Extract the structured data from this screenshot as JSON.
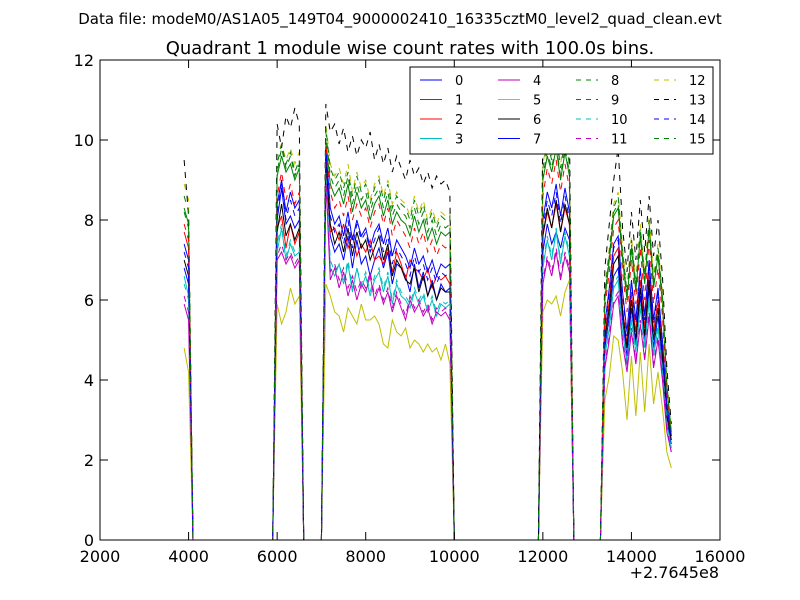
{
  "figure": {
    "suptitle": "Data file: modeM0/AS1A05_149T04_9000002410_16335cztM0_level2_quad_clean.evt",
    "axis_offset_label": "+2.7645e8"
  },
  "chart_data": {
    "type": "line",
    "title": "Quadrant 1 module wise count rates with 100.0s bins.",
    "xlabel": "",
    "ylabel": "",
    "xlim": [
      2000,
      16000
    ],
    "ylim": [
      0,
      12
    ],
    "x_offset": 276450000,
    "x_ticks": [
      2000,
      4000,
      6000,
      8000,
      10000,
      12000,
      14000,
      16000
    ],
    "y_ticks": [
      0,
      2,
      4,
      6,
      8,
      10,
      12
    ],
    "grid": false,
    "legend_position": "top-right",
    "legend_columns": 4,
    "time_bins": [
      3900,
      4000,
      4100,
      5900,
      6000,
      6100,
      6200,
      6300,
      6400,
      6500,
      6600,
      7000,
      7100,
      7200,
      7300,
      7400,
      7500,
      7600,
      7700,
      7800,
      7900,
      8000,
      8100,
      8200,
      8300,
      8400,
      8500,
      8600,
      8700,
      8800,
      8900,
      9000,
      9100,
      9200,
      9300,
      9400,
      9500,
      9600,
      9700,
      9800,
      9900,
      10000,
      11900,
      12000,
      12100,
      12200,
      12300,
      12400,
      12500,
      12600,
      12700,
      13300,
      13400,
      13500,
      13600,
      13700,
      13800,
      13900,
      14000,
      14100,
      14200,
      14300,
      14400,
      14500,
      14600,
      14700,
      14800,
      14900
    ],
    "series": [
      {
        "name": "0",
        "color": "#0000ff",
        "dash": "solid",
        "levels": [
          6.8,
          6.4,
          0,
          0,
          8.0,
          8.8,
          7.9,
          8.1,
          7.8,
          8.0,
          0,
          0,
          9.5,
          7.6,
          7.2,
          7.4,
          7.0,
          7.6,
          6.8,
          7.5,
          6.9,
          7.1,
          6.6,
          7.0,
          7.3,
          6.8,
          7.2,
          6.4,
          6.9,
          6.8,
          6.6,
          6.2,
          6.9,
          6.3,
          6.7,
          6.1,
          6.5,
          6.0,
          6.4,
          6.2,
          6.3,
          0,
          0,
          7.2,
          7.9,
          7.4,
          7.7,
          7.3,
          7.8,
          7.5,
          0,
          0,
          4.8,
          5.6,
          6.6,
          6.8,
          5.5,
          4.6,
          5.8,
          4.9,
          6.1,
          5.0,
          6.3,
          4.8,
          5.6,
          4.4,
          3.0,
          2.4
        ]
      },
      {
        "name": "1",
        "color": "#008000",
        "dash": "solid",
        "levels": [
          8.3,
          7.9,
          0,
          0,
          9.1,
          9.6,
          9.2,
          9.4,
          9.0,
          9.3,
          0,
          0,
          10.0,
          8.9,
          8.6,
          8.8,
          8.4,
          8.9,
          8.2,
          8.7,
          8.3,
          8.5,
          8.0,
          8.4,
          8.6,
          8.1,
          8.5,
          7.9,
          8.2,
          8.0,
          7.9,
          7.6,
          8.1,
          7.7,
          8.0,
          7.5,
          7.8,
          7.4,
          7.7,
          7.6,
          7.7,
          0,
          0,
          9.0,
          9.6,
          9.2,
          9.8,
          9.0,
          9.7,
          9.1,
          0,
          0,
          6.0,
          7.0,
          8.1,
          8.3,
          7.0,
          6.0,
          7.3,
          6.2,
          7.6,
          6.4,
          7.8,
          6.3,
          7.1,
          5.9,
          3.8,
          2.6
        ]
      },
      {
        "name": "2",
        "color": "#ff0000",
        "dash": "solid",
        "levels": [
          7.7,
          7.3,
          0,
          0,
          7.8,
          8.1,
          7.3,
          7.9,
          7.4,
          7.7,
          0,
          0,
          9.6,
          7.7,
          7.8,
          7.5,
          7.9,
          7.3,
          7.6,
          7.1,
          7.4,
          7.2,
          7.5,
          7.0,
          7.1,
          6.9,
          7.3,
          6.7,
          7.2,
          6.9,
          6.5,
          7.0,
          6.8,
          6.7,
          6.5,
          6.8,
          6.3,
          6.6,
          6.5,
          6.6,
          6.4,
          0,
          0,
          7.6,
          8.2,
          7.8,
          8.4,
          7.7,
          8.3,
          7.9,
          0,
          0,
          5.1,
          6.0,
          7.1,
          7.3,
          5.8,
          4.9,
          6.2,
          5.2,
          6.5,
          5.3,
          6.7,
          5.2,
          6.0,
          4.7,
          3.2,
          2.5
        ]
      },
      {
        "name": "3",
        "color": "#00bfbf",
        "dash": "solid",
        "levels": [
          6.6,
          6.1,
          0,
          0,
          7.2,
          7.8,
          7.0,
          7.4,
          7.1,
          7.2,
          0,
          0,
          9.1,
          6.8,
          6.6,
          6.9,
          6.4,
          6.9,
          6.2,
          6.8,
          6.3,
          6.6,
          6.1,
          6.5,
          6.7,
          6.2,
          6.6,
          5.9,
          6.4,
          6.1,
          6.0,
          5.8,
          6.2,
          5.9,
          6.1,
          5.7,
          6.0,
          5.6,
          5.9,
          5.8,
          5.9,
          0,
          0,
          6.8,
          7.5,
          7.0,
          7.7,
          6.9,
          7.6,
          7.1,
          0,
          0,
          4.6,
          5.3,
          6.3,
          6.5,
          5.2,
          4.4,
          5.5,
          4.7,
          5.8,
          4.8,
          6.0,
          4.6,
          5.3,
          4.2,
          2.9,
          2.3
        ]
      },
      {
        "name": "4",
        "color": "#bf00bf",
        "dash": "solid",
        "levels": [
          5.9,
          5.5,
          0,
          0,
          7.0,
          7.2,
          6.9,
          7.1,
          6.8,
          7.0,
          0,
          0,
          9.0,
          6.5,
          6.8,
          6.3,
          6.7,
          6.1,
          6.5,
          6.0,
          6.4,
          6.2,
          6.6,
          6.0,
          6.3,
          5.9,
          6.2,
          5.7,
          6.1,
          5.8,
          5.5,
          6.0,
          5.7,
          5.9,
          5.6,
          5.8,
          5.4,
          5.7,
          5.6,
          5.7,
          5.5,
          0,
          0,
          6.4,
          7.0,
          6.6,
          7.2,
          6.5,
          7.1,
          6.7,
          0,
          0,
          4.3,
          5.0,
          5.9,
          6.1,
          4.9,
          4.2,
          5.2,
          4.4,
          5.4,
          4.5,
          5.6,
          4.3,
          5.0,
          4.0,
          2.7,
          2.2
        ]
      },
      {
        "name": "5",
        "color": "#bfbf00",
        "dash": "solid",
        "levels": [
          4.8,
          4.2,
          0,
          0,
          5.9,
          5.4,
          5.7,
          6.3,
          5.9,
          6.1,
          0,
          0,
          6.4,
          6.1,
          5.7,
          5.6,
          5.2,
          5.8,
          5.6,
          5.4,
          5.9,
          5.5,
          5.5,
          5.6,
          5.4,
          4.9,
          4.8,
          5.5,
          5.2,
          5.1,
          5.3,
          4.8,
          5.0,
          4.9,
          4.7,
          4.9,
          4.7,
          4.8,
          4.5,
          4.9,
          4.4,
          0,
          0,
          5.7,
          6.0,
          5.9,
          6.1,
          5.6,
          6.2,
          6.5,
          0,
          0,
          3.5,
          4.1,
          5.1,
          5.0,
          4.2,
          3.0,
          4.6,
          3.1,
          4.7,
          3.2,
          4.9,
          3.4,
          4.2,
          3.3,
          2.2,
          1.8
        ]
      },
      {
        "name": "6",
        "color": "#000000",
        "dash": "solid",
        "levels": [
          7.0,
          6.6,
          0,
          0,
          7.7,
          8.4,
          7.6,
          7.9,
          7.5,
          7.8,
          0,
          0,
          9.4,
          7.9,
          7.4,
          7.7,
          7.2,
          7.8,
          7.1,
          7.7,
          7.3,
          7.5,
          7.0,
          7.3,
          7.6,
          7.0,
          7.4,
          6.6,
          7.0,
          6.8,
          6.5,
          6.4,
          6.8,
          6.2,
          6.6,
          6.1,
          6.4,
          6.0,
          6.3,
          6.2,
          6.2,
          0,
          0,
          7.6,
          8.3,
          7.8,
          8.5,
          7.7,
          8.4,
          7.9,
          0,
          0,
          5.0,
          5.8,
          6.9,
          7.1,
          5.7,
          4.8,
          6.0,
          5.0,
          6.3,
          5.1,
          6.5,
          5.0,
          5.8,
          4.6,
          3.1,
          2.5
        ]
      },
      {
        "name": "7",
        "color": "#0000ff",
        "dash": "solid",
        "levels": [
          7.4,
          7.0,
          0,
          0,
          8.4,
          9.0,
          8.2,
          8.7,
          8.3,
          8.5,
          0,
          0,
          9.8,
          8.3,
          7.9,
          8.1,
          7.6,
          8.2,
          7.5,
          8.0,
          7.6,
          7.8,
          7.3,
          7.7,
          7.9,
          7.4,
          7.8,
          7.1,
          7.5,
          7.3,
          7.1,
          6.8,
          7.3,
          6.9,
          7.1,
          6.7,
          7.0,
          6.6,
          6.9,
          6.8,
          6.9,
          0,
          0,
          8.0,
          8.7,
          8.3,
          8.9,
          8.1,
          8.8,
          8.2,
          0,
          0,
          5.4,
          6.3,
          7.4,
          7.6,
          6.2,
          5.2,
          6.5,
          5.5,
          6.8,
          5.6,
          7.0,
          5.5,
          6.3,
          5.0,
          3.4,
          2.6
        ]
      },
      {
        "name": "8",
        "color": "#008000",
        "dash": "dash",
        "levels": [
          8.2,
          7.8,
          0,
          0,
          9.2,
          9.8,
          9.3,
          9.6,
          9.1,
          9.4,
          0,
          0,
          10.2,
          9.1,
          8.8,
          9.0,
          8.6,
          9.1,
          8.4,
          8.9,
          8.5,
          8.7,
          8.2,
          8.6,
          8.8,
          8.3,
          8.7,
          8.1,
          8.4,
          8.2,
          8.1,
          7.8,
          8.3,
          7.9,
          8.2,
          7.7,
          8.0,
          7.6,
          7.9,
          7.8,
          7.9,
          0,
          0,
          9.1,
          9.7,
          9.3,
          9.9,
          9.1,
          9.8,
          9.2,
          0,
          0,
          6.1,
          7.1,
          8.2,
          8.4,
          7.1,
          6.1,
          7.4,
          6.3,
          7.7,
          6.5,
          7.9,
          6.4,
          7.2,
          6.0,
          3.9,
          2.7
        ]
      },
      {
        "name": "9",
        "color": "#ff0000",
        "dash": "dash",
        "levels": [
          7.9,
          7.5,
          0,
          0,
          8.6,
          9.2,
          8.5,
          8.9,
          8.4,
          8.7,
          0,
          0,
          9.9,
          8.7,
          8.3,
          8.5,
          8.1,
          8.6,
          8.0,
          8.4,
          8.1,
          8.3,
          7.8,
          8.2,
          8.4,
          7.9,
          8.3,
          7.6,
          8.0,
          7.8,
          7.6,
          7.3,
          7.8,
          7.4,
          7.7,
          7.2,
          7.5,
          7.1,
          7.4,
          7.3,
          7.4,
          0,
          0,
          8.6,
          9.3,
          8.9,
          9.5,
          8.7,
          9.4,
          8.8,
          0,
          0,
          5.8,
          6.7,
          7.8,
          8.0,
          6.7,
          5.7,
          7.0,
          5.9,
          7.3,
          6.0,
          7.5,
          5.9,
          6.8,
          5.6,
          3.6,
          2.6
        ]
      },
      {
        "name": "10",
        "color": "#00bfbf",
        "dash": "dash",
        "levels": [
          6.4,
          6.0,
          0,
          0,
          7.4,
          7.9,
          7.1,
          7.5,
          7.2,
          7.3,
          0,
          0,
          9.2,
          7.0,
          6.7,
          6.9,
          6.5,
          7.0,
          6.3,
          6.8,
          6.4,
          6.7,
          6.2,
          6.6,
          6.8,
          6.3,
          6.7,
          6.0,
          6.5,
          6.2,
          6.1,
          5.9,
          6.3,
          6.0,
          6.2,
          5.8,
          6.1,
          5.7,
          6.0,
          5.9,
          6.0,
          0,
          0,
          6.9,
          7.6,
          7.1,
          7.8,
          7.0,
          7.7,
          7.2,
          0,
          0,
          4.7,
          5.4,
          6.4,
          6.6,
          5.3,
          4.5,
          5.6,
          4.8,
          5.9,
          4.9,
          6.1,
          4.7,
          5.4,
          4.3,
          3.0,
          2.3
        ]
      },
      {
        "name": "11",
        "color": "#bf00bf",
        "dash": "dash",
        "levels": [
          6.1,
          5.7,
          0,
          0,
          7.1,
          7.4,
          7.0,
          7.2,
          6.9,
          7.1,
          0,
          0,
          9.1,
          6.7,
          6.9,
          6.5,
          6.8,
          6.3,
          6.6,
          6.2,
          6.5,
          6.3,
          6.7,
          6.1,
          6.4,
          6.0,
          6.3,
          5.8,
          6.2,
          5.9,
          5.6,
          6.1,
          5.8,
          6.0,
          5.7,
          5.9,
          5.5,
          5.8,
          5.7,
          5.8,
          5.6,
          0,
          0,
          6.5,
          7.1,
          6.7,
          7.3,
          6.6,
          7.2,
          6.8,
          0,
          0,
          4.4,
          5.1,
          6.0,
          6.2,
          5.0,
          4.3,
          5.3,
          4.5,
          5.5,
          4.6,
          5.7,
          4.4,
          5.1,
          4.1,
          2.8,
          2.2
        ]
      },
      {
        "name": "12",
        "color": "#bfbf00",
        "dash": "dash",
        "levels": [
          8.9,
          8.5,
          0,
          0,
          9.6,
          9.9,
          9.5,
          9.8,
          9.4,
          9.7,
          0,
          0,
          10.4,
          9.4,
          9.1,
          9.3,
          8.9,
          9.4,
          8.7,
          9.2,
          8.8,
          9.0,
          8.5,
          8.9,
          9.1,
          8.6,
          9.0,
          8.4,
          8.7,
          8.5,
          8.4,
          8.1,
          8.6,
          8.2,
          8.5,
          8.0,
          8.3,
          7.9,
          8.2,
          8.1,
          8.2,
          0,
          0,
          9.4,
          10.0,
          9.6,
          10.2,
          9.4,
          10.1,
          9.5,
          0,
          0,
          6.3,
          7.3,
          8.4,
          8.7,
          7.3,
          6.3,
          7.6,
          6.5,
          7.9,
          6.7,
          8.1,
          6.6,
          7.4,
          6.2,
          4.0,
          2.8
        ]
      },
      {
        "name": "13",
        "color": "#000000",
        "dash": "dash",
        "levels": [
          9.5,
          8.1,
          0,
          0,
          10.4,
          9.8,
          10.6,
          10.3,
          10.8,
          10.4,
          0,
          0,
          10.9,
          10.2,
          10.4,
          9.9,
          10.3,
          9.7,
          10.1,
          9.6,
          10.0,
          9.8,
          10.2,
          9.5,
          9.9,
          9.4,
          9.8,
          9.2,
          9.6,
          9.3,
          9.0,
          9.5,
          9.1,
          9.3,
          8.9,
          9.2,
          8.8,
          9.1,
          8.9,
          9.0,
          8.7,
          0,
          0,
          10.3,
          10.5,
          10.2,
          10.7,
          10.4,
          10.6,
          10.3,
          0,
          0,
          6.8,
          7.9,
          9.0,
          9.8,
          7.8,
          6.7,
          8.2,
          7.0,
          8.5,
          7.2,
          8.6,
          7.1,
          8.0,
          6.6,
          4.3,
          2.9
        ]
      },
      {
        "name": "14",
        "color": "#0000ff",
        "dash": "dash",
        "levels": [
          7.2,
          6.8,
          0,
          0,
          8.2,
          8.9,
          8.0,
          8.5,
          8.1,
          8.3,
          0,
          0,
          9.7,
          8.1,
          7.7,
          7.9,
          7.4,
          8.0,
          7.3,
          7.9,
          7.5,
          7.7,
          7.2,
          7.5,
          7.8,
          7.2,
          7.6,
          6.9,
          7.3,
          7.1,
          6.9,
          6.6,
          7.1,
          6.7,
          6.9,
          6.5,
          6.8,
          6.4,
          6.7,
          6.6,
          6.7,
          0,
          0,
          7.8,
          8.5,
          8.1,
          8.7,
          7.9,
          8.6,
          8.0,
          0,
          0,
          5.3,
          6.2,
          7.3,
          7.5,
          6.1,
          5.1,
          6.4,
          5.4,
          6.7,
          5.5,
          6.9,
          5.4,
          6.2,
          4.9,
          3.3,
          2.6
        ]
      },
      {
        "name": "15",
        "color": "#008000",
        "dash": "dash",
        "levels": [
          8.6,
          8.2,
          0,
          0,
          9.4,
          9.9,
          9.4,
          9.7,
          9.2,
          9.5,
          0,
          0,
          10.3,
          9.3,
          9.0,
          9.2,
          8.8,
          9.2,
          8.6,
          9.1,
          8.7,
          8.9,
          8.4,
          8.8,
          9.0,
          8.5,
          8.9,
          8.3,
          8.6,
          8.4,
          8.3,
          8.0,
          8.5,
          8.1,
          8.4,
          7.9,
          8.2,
          7.8,
          8.1,
          8.0,
          8.1,
          0,
          0,
          9.3,
          9.9,
          9.5,
          10.1,
          9.3,
          10.0,
          9.4,
          0,
          0,
          6.2,
          7.2,
          8.3,
          8.6,
          7.2,
          6.2,
          7.5,
          6.4,
          7.8,
          6.6,
          8.0,
          6.5,
          7.3,
          6.1,
          3.9,
          2.7
        ]
      }
    ]
  }
}
